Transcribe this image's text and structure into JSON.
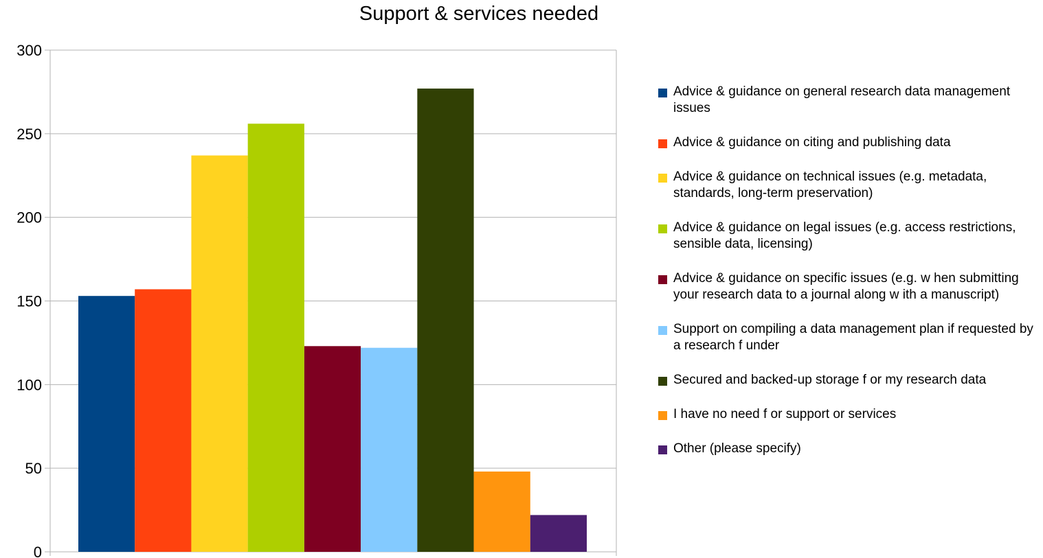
{
  "chart_data": {
    "type": "bar",
    "title": "Support & services needed",
    "xlabel": "",
    "ylabel": "",
    "ylim": [
      0,
      300
    ],
    "yticks": [
      "0",
      "50",
      "100",
      "150",
      "200",
      "250",
      "300"
    ],
    "grid": true,
    "legend_position": "right",
    "series": [
      {
        "name": "Advice & guidance on general research data management issues",
        "value": 153,
        "color": "#004586"
      },
      {
        "name": "Advice & guidance on citing and publishing data",
        "value": 157,
        "color": "#ff420e"
      },
      {
        "name": "Advice & guidance on technical issues (e.g. metadata, standards, long-term preservation)",
        "value": 237,
        "color": "#ffd320"
      },
      {
        "name": "Advice & guidance on legal issues (e.g. access restrictions, sensible data, licensing)",
        "value": 256,
        "color": "#aecf00"
      },
      {
        "name": "Advice & guidance on specific issues (e.g. w hen submitting your research data to a journal along w ith a manuscript)",
        "value": 123,
        "color": "#7e0021"
      },
      {
        "name": "Support on compiling a data management plan if requested by a research f under",
        "value": 122,
        "color": "#83caff"
      },
      {
        "name": "Secured and backed-up storage f or my research data",
        "value": 277,
        "color": "#314004"
      },
      {
        "name": "I have no need f or support or services",
        "value": 48,
        "color": "#ff950e"
      },
      {
        "name": "Other (please specify)",
        "value": 22,
        "color": "#4b1f6f"
      }
    ]
  }
}
